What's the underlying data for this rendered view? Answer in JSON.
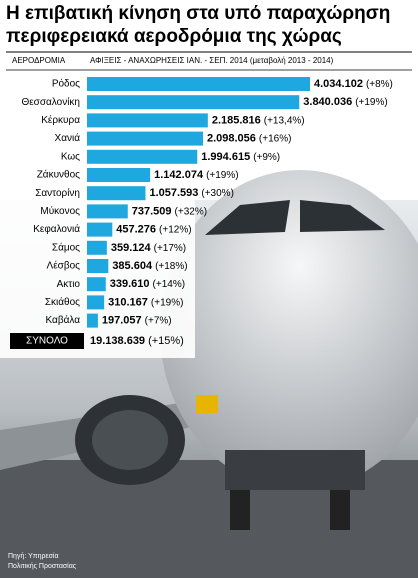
{
  "chart_data": {
    "type": "bar",
    "title": [
      "Η επιβατική κίνηση στα υπό παραχώρηση",
      "περιφερειακά αεροδρόμια της χώρας"
    ],
    "category_header": "ΑΕΡΟΔΡΟΜΙΑ",
    "value_header": "ΑΦΙΞΕΙΣ - ΑΝΑΧΩΡΗΣΕΙΣ ΙΑΝ. - ΣΕΠ. 2014 (μεταβολή 2013 - 2014)",
    "categories": [
      "Ρόδος",
      "Θεσσαλονίκη",
      "Κέρκυρα",
      "Χανιά",
      "Κως",
      "Ζάκυνθος",
      "Σαντορίνη",
      "Μύκονος",
      "Κεφαλονιά",
      "Σάμος",
      "Λέσβος",
      "Ακτιο",
      "Σκιάθος",
      "Καβάλα"
    ],
    "values": [
      4034102,
      3840036,
      2185816,
      2098056,
      1994615,
      1142074,
      1057593,
      737509,
      457276,
      359124,
      385604,
      339610,
      310167,
      197057
    ],
    "value_labels": [
      "4.034.102",
      "3.840.036",
      "2.185.816",
      "2.098.056",
      "1.994.615",
      "1.142.074",
      "1.057.593",
      "737.509",
      "457.276",
      "359.124",
      "385.604",
      "339.610",
      "310.167",
      "197.057"
    ],
    "changes": [
      "(+8%)",
      "(+19%)",
      "(+13,4%)",
      "(+16%)",
      "(+9%)",
      "(+19%)",
      "(+30%)",
      "(+32%)",
      "(+12%)",
      "(+17%)",
      "(+18%)",
      "(+14%)",
      "(+19%)",
      "(+7%)"
    ],
    "color": "#1ea8df",
    "total_label": "ΣΥΝΟΛΟ",
    "total_value": "19.138.639",
    "total_change": "(+15%)",
    "source": [
      "Πηγή: Υπηρεσία",
      "Πολιτικής Προστασίας"
    ]
  }
}
